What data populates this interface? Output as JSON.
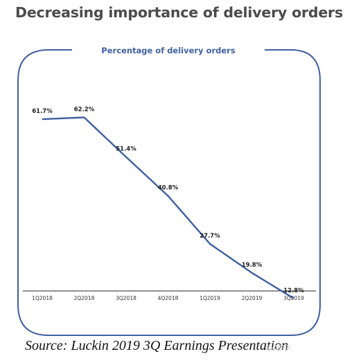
{
  "title": "Decreasing importance of delivery orders",
  "source": "Source: Luckin 2019 3Q Earnings Presentation",
  "watermark": "©APP",
  "colors": {
    "line": "#3f5f9f",
    "frame": "#3f5f9f",
    "title": "#4b4b4b",
    "subtitle": "#3f5f9f"
  },
  "chart_data": {
    "type": "line",
    "title": "Percentage of delivery orders",
    "categories": [
      "1Q2018",
      "2Q2018",
      "3Q2018",
      "4Q2018",
      "1Q2019",
      "2Q2019",
      "3Q2019"
    ],
    "series": [
      {
        "values": [
          61.7,
          62.2,
          51.4,
          40.8,
          27.7,
          19.8,
          12.8
        ]
      }
    ],
    "data_labels": [
      "61.7%",
      "62.2%",
      "51.4%",
      "40.8%",
      "27.7%",
      "19.8%",
      "12.8%"
    ],
    "ylim": [
      0,
      100
    ],
    "grid": false,
    "legend": "none"
  }
}
